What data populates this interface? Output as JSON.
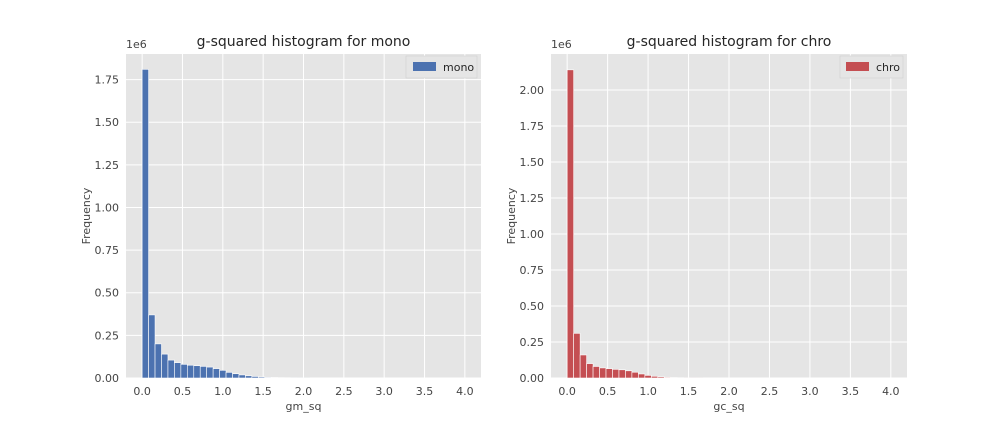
{
  "chart_data": [
    {
      "type": "bar",
      "title": "g-squared histogram for mono",
      "xlabel": "gm_sq",
      "ylabel": "Frequency",
      "offset_label": "1e6",
      "xlim": [
        -0.2,
        4.2
      ],
      "ylim": [
        0,
        1.9
      ],
      "x_ticks": [
        0,
        0.5,
        1,
        1.5,
        2,
        2.5,
        3,
        3.5,
        4
      ],
      "x_tick_labels": [
        "0.0",
        "0.5",
        "1.0",
        "1.5",
        "2.0",
        "2.5",
        "3.0",
        "3.5",
        "4.0"
      ],
      "y_ticks": [
        0,
        0.25,
        0.5,
        0.75,
        1,
        1.25,
        1.5,
        1.75
      ],
      "y_tick_labels": [
        "0.00",
        "0.25",
        "0.50",
        "0.75",
        "1.00",
        "1.25",
        "1.50",
        "1.75"
      ],
      "grid": true,
      "legend": {
        "position": "top-right",
        "entries": [
          "mono"
        ]
      },
      "series": [
        {
          "name": "mono",
          "color": "#4c72b0",
          "bin_width": 0.08,
          "bin_start": 0.0,
          "values": [
            1.81,
            0.37,
            0.2,
            0.14,
            0.105,
            0.09,
            0.08,
            0.075,
            0.072,
            0.068,
            0.064,
            0.055,
            0.045,
            0.033,
            0.025,
            0.018,
            0.013,
            0.009,
            0.006,
            0.004,
            0.003,
            0.002,
            0.0015,
            0.001,
            0.0008,
            0.0005
          ]
        }
      ]
    },
    {
      "type": "bar",
      "title": "g-squared histogram for chro",
      "xlabel": "gc_sq",
      "ylabel": "Frequency",
      "offset_label": "1e6",
      "xlim": [
        -0.2,
        4.2
      ],
      "ylim": [
        0,
        2.25
      ],
      "x_ticks": [
        0,
        0.5,
        1,
        1.5,
        2,
        2.5,
        3,
        3.5,
        4
      ],
      "x_tick_labels": [
        "0.0",
        "0.5",
        "1.0",
        "1.5",
        "2.0",
        "2.5",
        "3.0",
        "3.5",
        "4.0"
      ],
      "y_ticks": [
        0,
        0.25,
        0.5,
        0.75,
        1,
        1.25,
        1.5,
        1.75,
        2
      ],
      "y_tick_labels": [
        "0.00",
        "0.25",
        "0.50",
        "0.75",
        "1.00",
        "1.25",
        "1.50",
        "1.75",
        "2.00"
      ],
      "grid": true,
      "legend": {
        "position": "top-right",
        "entries": [
          "chro"
        ]
      },
      "series": [
        {
          "name": "chro",
          "color": "#c44e52",
          "bin_width": 0.08,
          "bin_start": 0.0,
          "values": [
            2.14,
            0.31,
            0.16,
            0.1,
            0.08,
            0.07,
            0.065,
            0.06,
            0.057,
            0.05,
            0.04,
            0.028,
            0.018,
            0.012,
            0.008,
            0.005,
            0.003,
            0.002,
            0.0012,
            0.0008,
            0.0005
          ]
        }
      ]
    }
  ]
}
